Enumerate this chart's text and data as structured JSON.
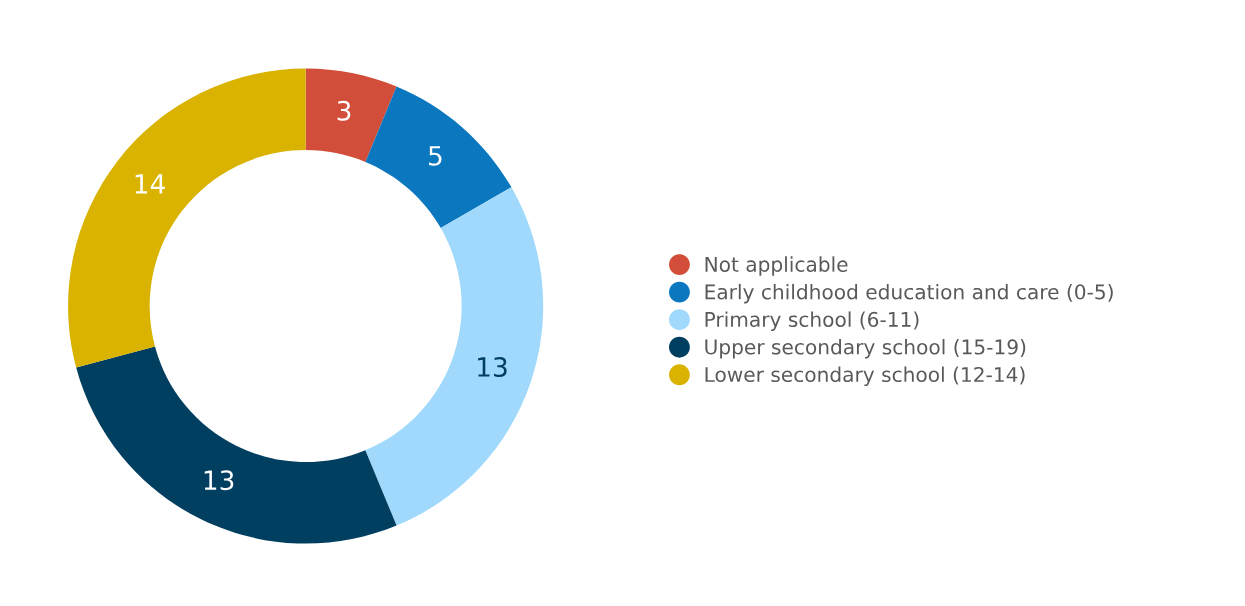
{
  "chart_data": {
    "type": "donut",
    "categories": [
      "Not applicable",
      "Early childhood education and care (0-5)",
      "Primary school (6-11)",
      "Upper secondary school (15-19)",
      "Lower secondary school (12-14)"
    ],
    "values": [
      3,
      5,
      13,
      13,
      14
    ],
    "colors": [
      "#d24e3a",
      "#0a77bf",
      "#a0d9fc",
      "#003f60",
      "#d9b300"
    ],
    "data_labels": true,
    "legend": "right"
  }
}
